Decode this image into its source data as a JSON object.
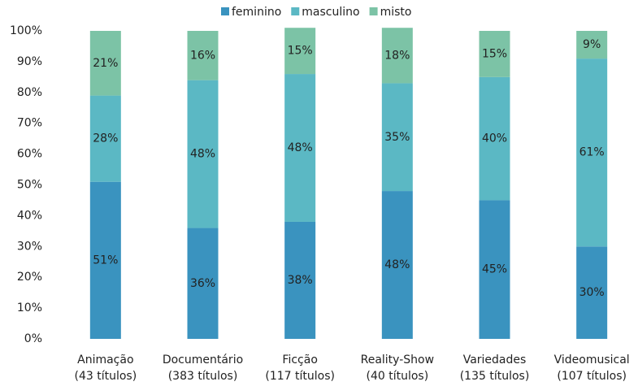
{
  "chart_data": {
    "type": "stacked_bar",
    "categories": [
      [
        "Animação",
        "(43 títulos)"
      ],
      [
        "Documentário",
        "(383 títulos)"
      ],
      [
        "Ficção",
        "(117 títulos)"
      ],
      [
        "Reality-Show",
        "(40 títulos)"
      ],
      [
        "Variedades",
        "(135 títulos)"
      ],
      [
        "Videomusical",
        "(107 títulos)"
      ]
    ],
    "series": [
      {
        "name": "feminino",
        "color": "#3a93bf",
        "values": [
          51,
          36,
          38,
          48,
          45,
          30
        ],
        "value_labels": [
          "51%",
          "36%",
          "38%",
          "48%",
          "45%",
          "30%"
        ]
      },
      {
        "name": "masculino",
        "color": "#5bb8c4",
        "values": [
          28,
          48,
          48,
          35,
          40,
          61
        ],
        "value_labels": [
          "28%",
          "48%",
          "48%",
          "35%",
          "40%",
          "61%"
        ]
      },
      {
        "name": "misto",
        "color": "#7cc3a6",
        "values": [
          21,
          16,
          15,
          18,
          15,
          9
        ],
        "value_labels": [
          "21%",
          "16%",
          "15%",
          "18%",
          "15%",
          "9%"
        ]
      }
    ],
    "ylim": [
      0,
      100
    ],
    "yticks": [
      {
        "value": 0,
        "label": "0%"
      },
      {
        "value": 10,
        "label": "10%"
      },
      {
        "value": 20,
        "label": "20%"
      },
      {
        "value": 30,
        "label": "30%"
      },
      {
        "value": 40,
        "label": "40%"
      },
      {
        "value": 50,
        "label": "50%"
      },
      {
        "value": 60,
        "label": "60%"
      },
      {
        "value": 70,
        "label": "70%"
      },
      {
        "value": 80,
        "label": "80%"
      },
      {
        "value": 90,
        "label": "90%"
      },
      {
        "value": 100,
        "label": "100%"
      }
    ],
    "legend": "top"
  }
}
